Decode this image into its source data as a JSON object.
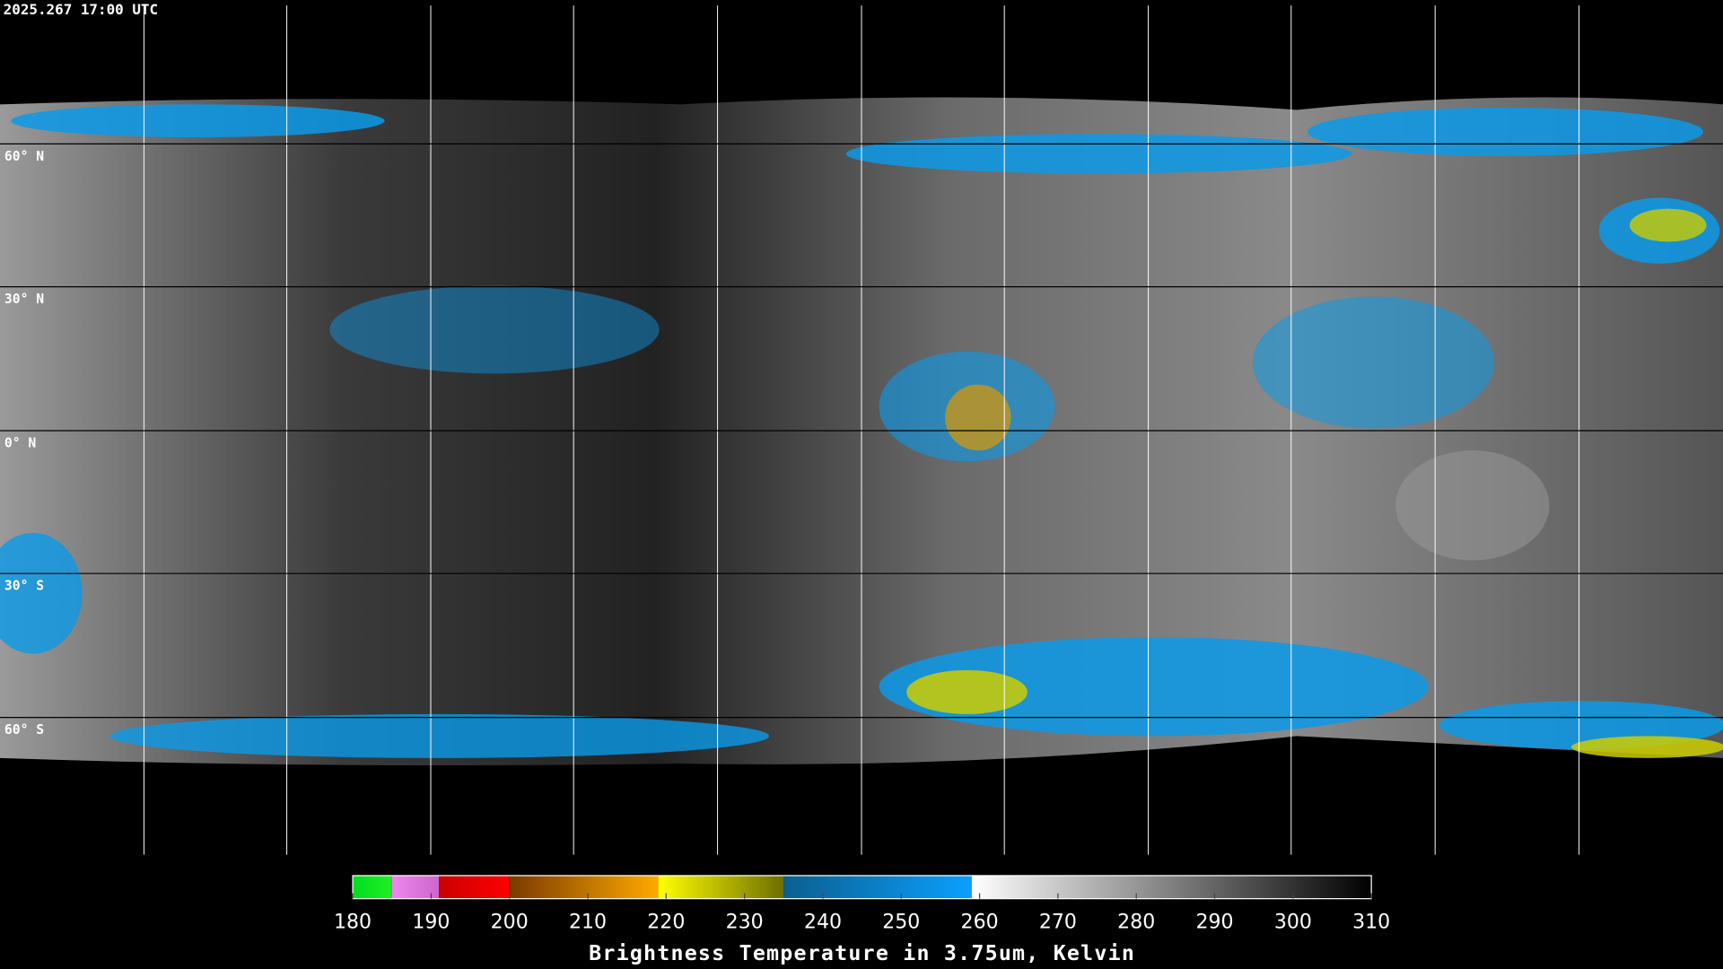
{
  "header": {
    "timestamp": "2025.267 17:00 UTC"
  },
  "map": {
    "latitude_labels": [
      "60° N",
      "30° N",
      "0° N",
      "30° S",
      "60° S"
    ]
  },
  "colorbar": {
    "title": "Brightness Temperature in 3.75um, Kelvin",
    "range": [
      180,
      310
    ],
    "ticks": [
      180,
      190,
      200,
      210,
      220,
      230,
      240,
      250,
      260,
      270,
      280,
      290,
      300,
      310
    ],
    "segments": [
      {
        "from": 180,
        "to": 185,
        "colors": [
          "#00dd22",
          "#22ee22"
        ]
      },
      {
        "from": 185,
        "to": 191,
        "colors": [
          "#ee88ee",
          "#cc66cc"
        ]
      },
      {
        "from": 191,
        "to": 200,
        "colors": [
          "#cc0000",
          "#ff0000"
        ]
      },
      {
        "from": 200,
        "to": 219,
        "colors": [
          "#7a3a00",
          "#ffaa00"
        ]
      },
      {
        "from": 219,
        "to": 235,
        "colors": [
          "#ffff00",
          "#6e6e00"
        ]
      },
      {
        "from": 235,
        "to": 259,
        "colors": [
          "#0b5f8f",
          "#0aa0ff"
        ]
      },
      {
        "from": 259,
        "to": 310,
        "colors": [
          "#ffffff",
          "#000000"
        ]
      }
    ]
  }
}
